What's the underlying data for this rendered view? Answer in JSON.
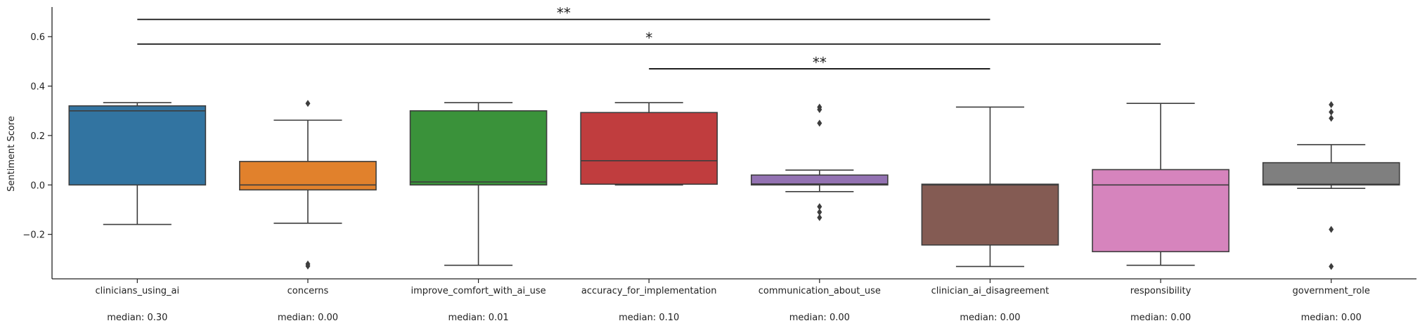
{
  "chart_data": {
    "type": "box",
    "title": "",
    "xlabel": "",
    "ylabel": "Sentiment Score",
    "ylim": [
      -0.38,
      0.72
    ],
    "yticks": [
      -0.2,
      0.0,
      0.2,
      0.4,
      0.6
    ],
    "ytick_labels": [
      "−0.2",
      "0.0",
      "0.2",
      "0.4",
      "0.6"
    ],
    "categories": [
      "clinicians_using_ai",
      "concerns",
      "improve_comfort_with_ai_use",
      "accuracy_for_implementation",
      "communication_about_use",
      "clinician_ai_disagreement",
      "responsibility",
      "government_role"
    ],
    "median_labels": [
      "median: 0.30",
      "median: 0.00",
      "median: 0.01",
      "median: 0.10",
      "median: 0.00",
      "median: 0.00",
      "median: 0.00",
      "median: 0.00"
    ],
    "boxes": [
      {
        "q1": 0.0,
        "median": 0.3,
        "q3": 0.32,
        "whisker_low": -0.16,
        "whisker_high": 0.333,
        "outliers": [],
        "color": "#3274a1"
      },
      {
        "q1": -0.02,
        "median": 0.0,
        "q3": 0.095,
        "whisker_low": -0.155,
        "whisker_high": 0.262,
        "outliers": [
          0.33,
          -0.32,
          -0.328
        ],
        "color": "#e1812c"
      },
      {
        "q1": 0.0,
        "median": 0.012,
        "q3": 0.3,
        "whisker_low": -0.325,
        "whisker_high": 0.333,
        "outliers": [],
        "color": "#3a923a"
      },
      {
        "q1": 0.003,
        "median": 0.098,
        "q3": 0.293,
        "whisker_low": 0.0,
        "whisker_high": 0.333,
        "outliers": [],
        "color": "#c03d3e"
      },
      {
        "q1": 0.0,
        "median": 0.004,
        "q3": 0.04,
        "whisker_low": -0.027,
        "whisker_high": 0.06,
        "outliers": [
          0.315,
          0.305,
          0.25,
          -0.088,
          -0.11,
          -0.132
        ],
        "color": "#9372b2"
      },
      {
        "q1": -0.243,
        "median": 0.0,
        "q3": 0.003,
        "whisker_low": -0.33,
        "whisker_high": 0.315,
        "outliers": [],
        "color": "#845b53"
      },
      {
        "q1": -0.27,
        "median": 0.0,
        "q3": 0.062,
        "whisker_low": -0.325,
        "whisker_high": 0.33,
        "outliers": [],
        "color": "#d684bd"
      },
      {
        "q1": 0.0,
        "median": 0.003,
        "q3": 0.09,
        "whisker_low": -0.014,
        "whisker_high": 0.163,
        "outliers": [
          0.325,
          0.295,
          0.27,
          -0.18,
          -0.33
        ],
        "color": "#7f7f7f"
      }
    ],
    "significance": [
      {
        "from": 0,
        "to": 5,
        "y": 0.67,
        "label": "**"
      },
      {
        "from": 0,
        "to": 6,
        "y": 0.57,
        "label": "*"
      },
      {
        "from": 3,
        "to": 5,
        "y": 0.47,
        "label": "**"
      }
    ],
    "grid": false,
    "legend": "none"
  }
}
